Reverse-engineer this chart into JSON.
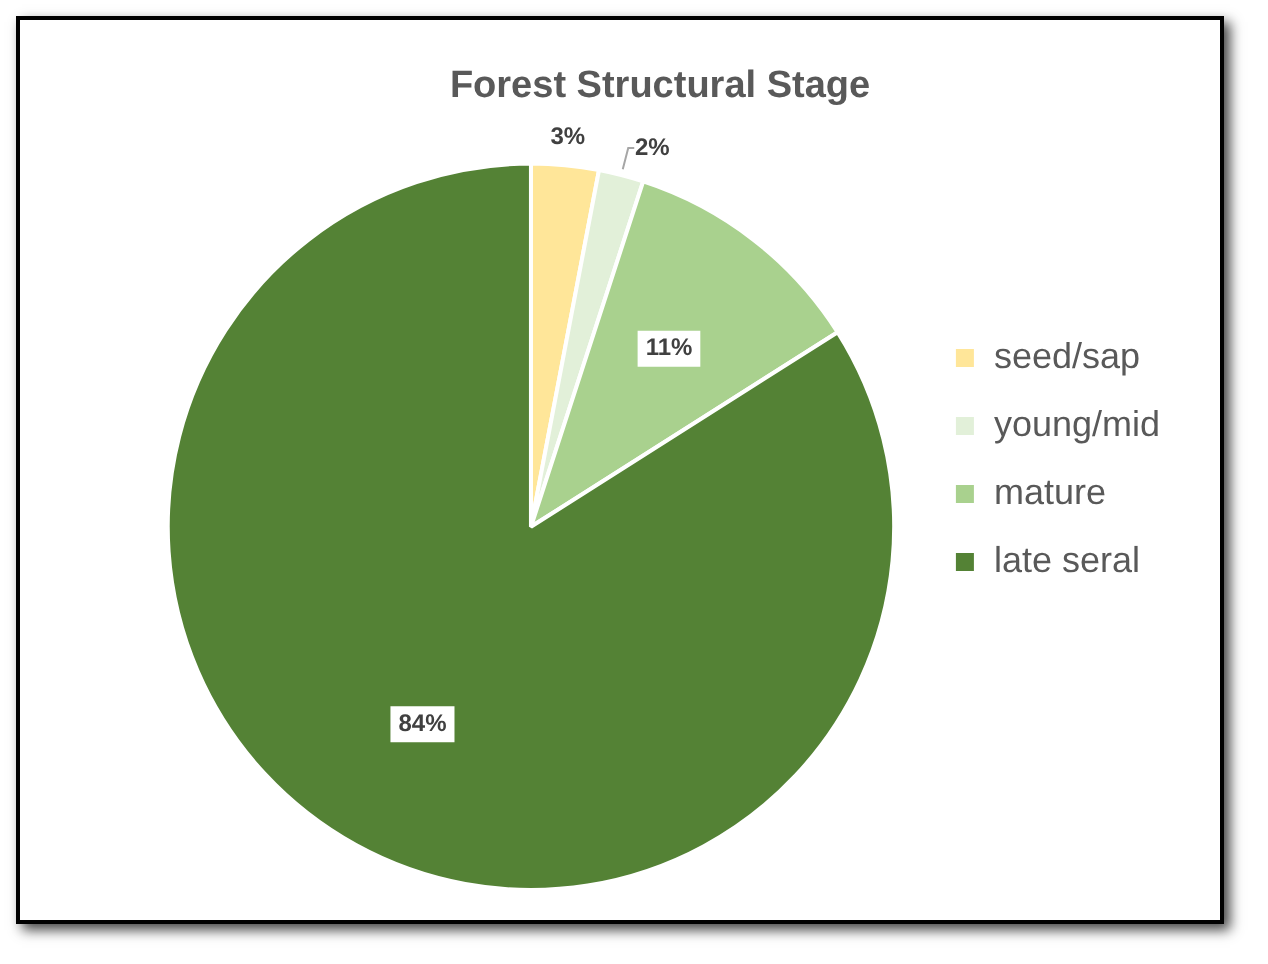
{
  "chart_data": {
    "type": "pie",
    "title": "Forest Structural Stage",
    "categories": [
      "seed/sap",
      "young/mid",
      "mature",
      "late seral"
    ],
    "values": [
      3,
      2,
      11,
      84
    ],
    "colors": [
      "#ffe699",
      "#e2f0d9",
      "#a9d18e",
      "#548235"
    ],
    "value_labels": [
      "3%",
      "2%",
      "11%",
      "84%"
    ],
    "legend": "right"
  }
}
